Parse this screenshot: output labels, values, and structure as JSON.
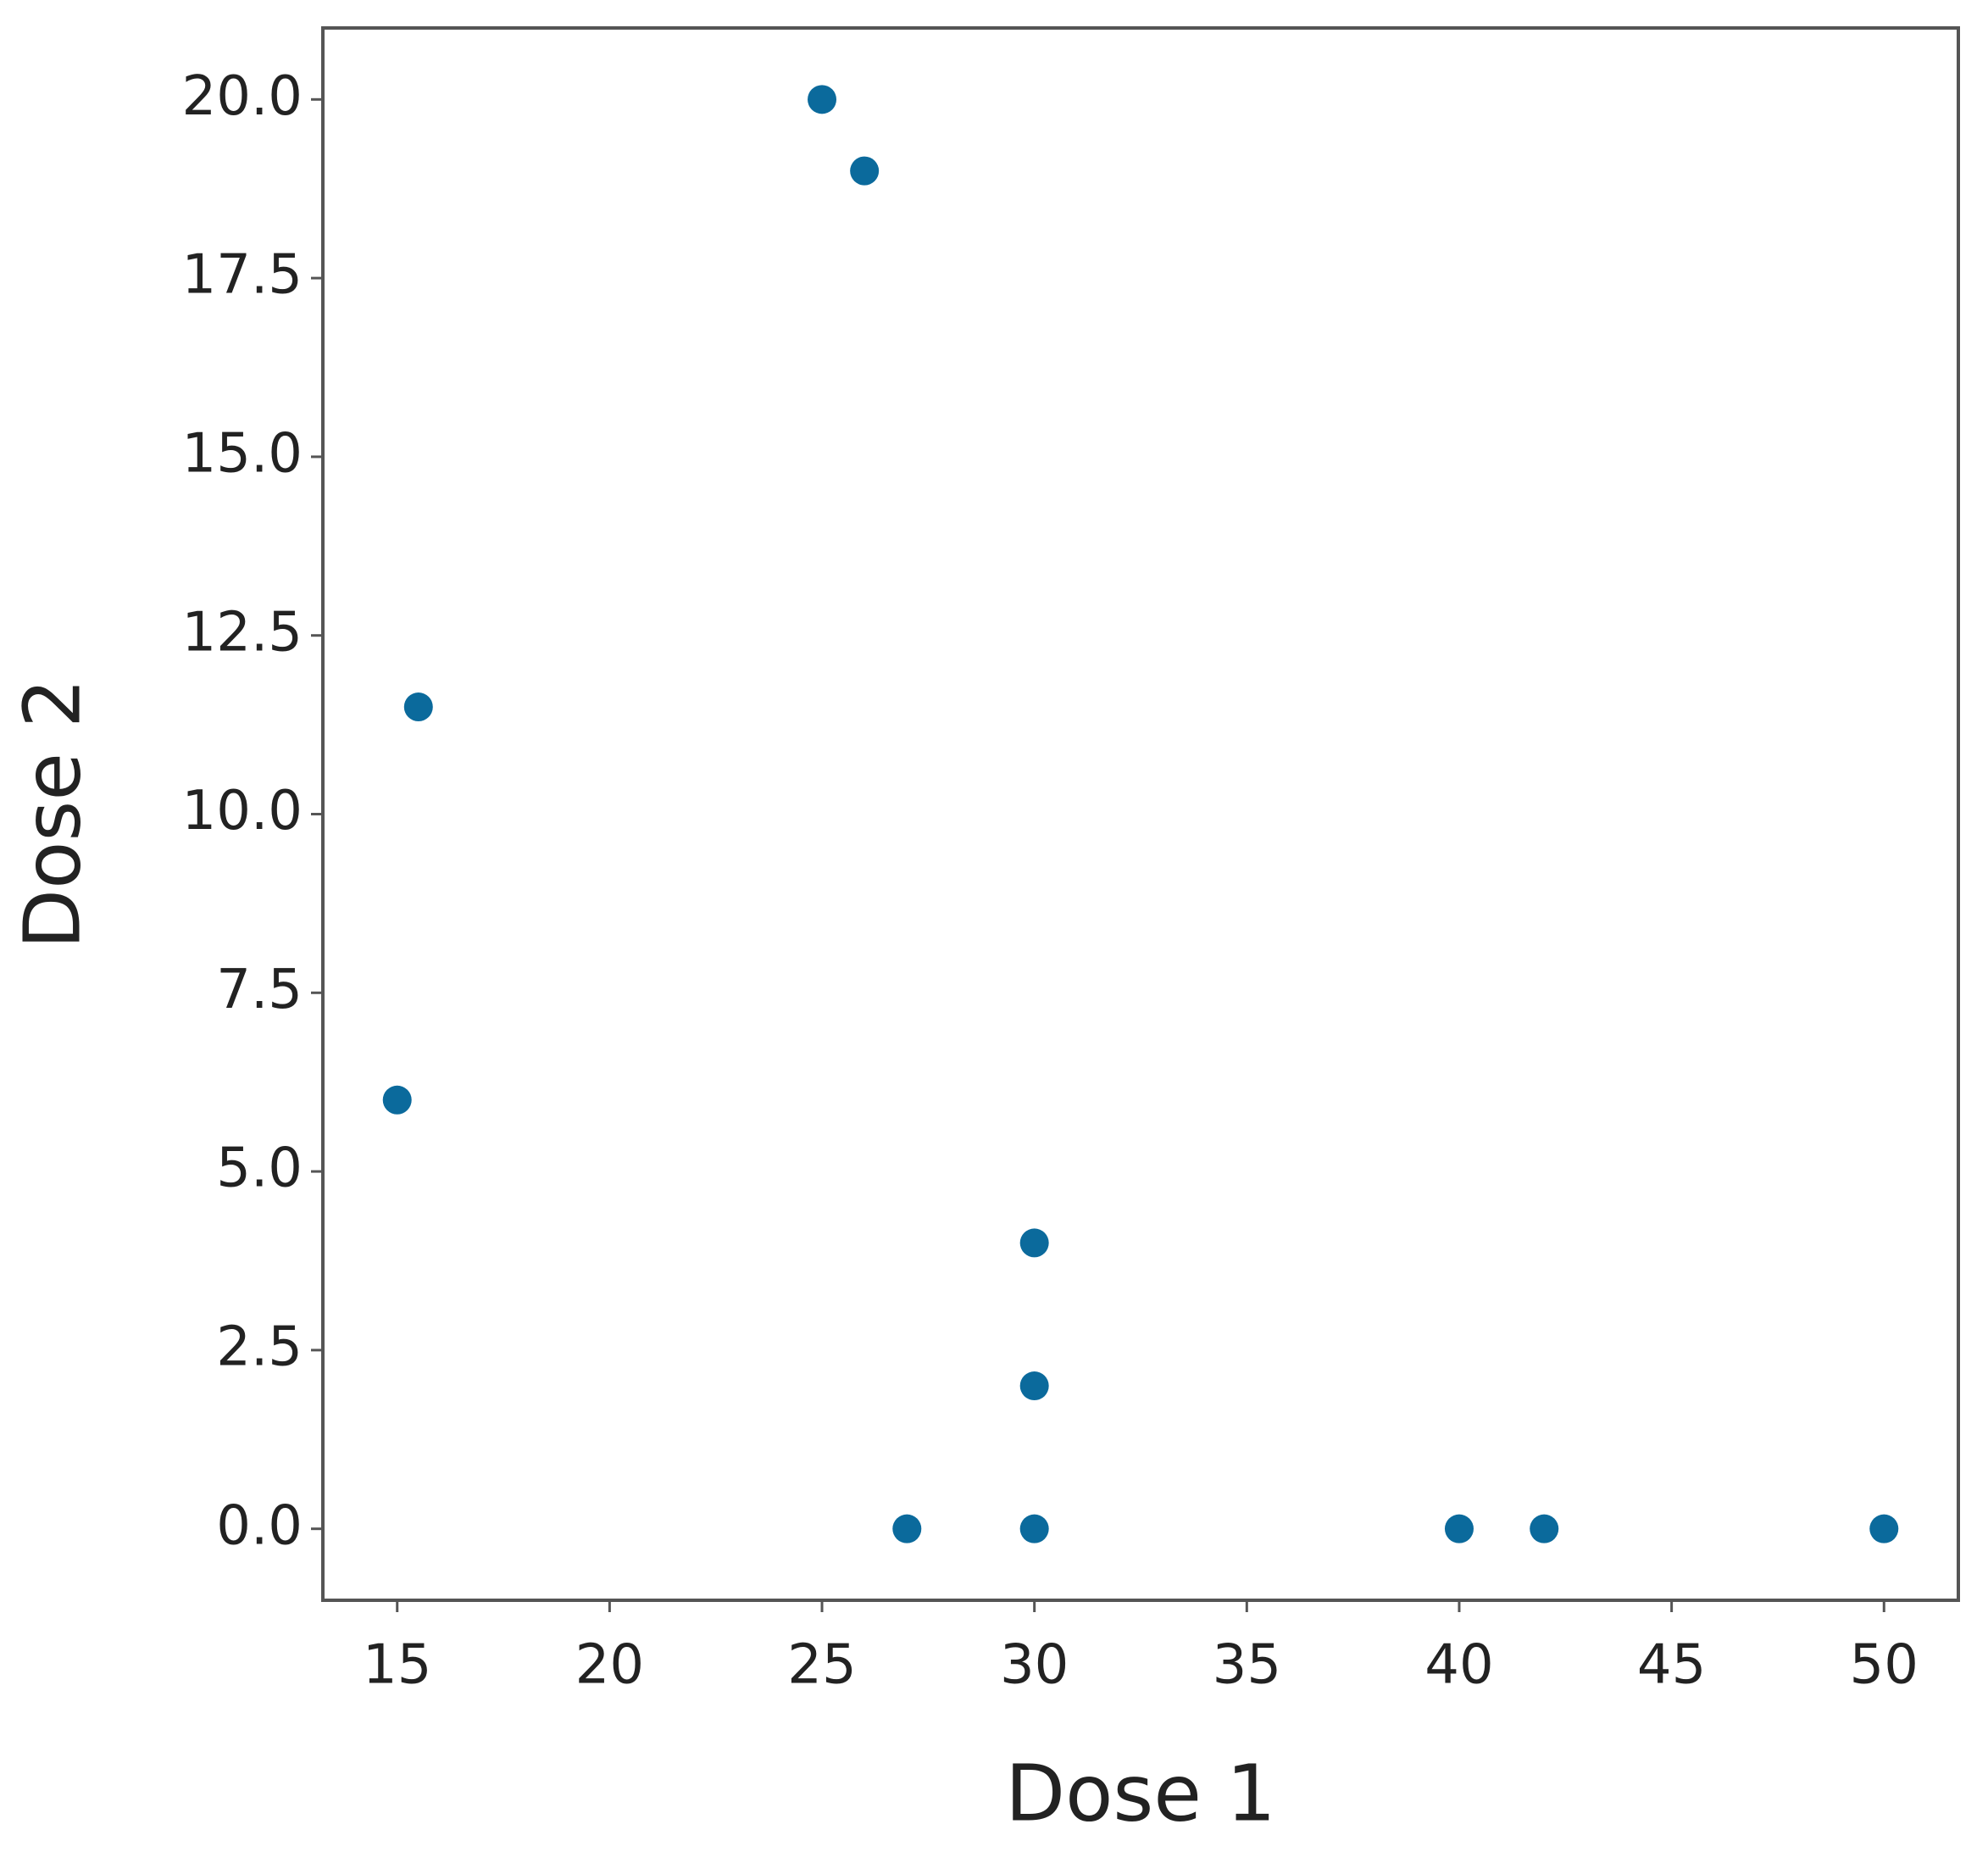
{
  "chart_data": {
    "type": "scatter",
    "x_label": "Dose 1",
    "y_label": "Dose 2",
    "color": "#0b6a9c",
    "x": [
      25,
      26,
      15.5,
      15,
      30,
      30,
      27,
      30,
      40,
      42,
      50
    ],
    "values": [
      20,
      19,
      11.5,
      6,
      4,
      2,
      0,
      0,
      0,
      0,
      0
    ],
    "xlim": [
      13.25,
      51.75
    ],
    "ylim": [
      -1,
      21
    ],
    "xticks": [
      15,
      20,
      25,
      30,
      35,
      40,
      45,
      50
    ],
    "yticks": [
      {
        "value": 0,
        "label": "0.0"
      },
      {
        "value": 2.5,
        "label": "2.5"
      },
      {
        "value": 5,
        "label": "5.0"
      },
      {
        "value": 7.5,
        "label": "7.5"
      },
      {
        "value": 10,
        "label": "10.0"
      },
      {
        "value": 12.5,
        "label": "12.5"
      },
      {
        "value": 15,
        "label": "15.0"
      },
      {
        "value": 17.5,
        "label": "17.5"
      },
      {
        "value": 20,
        "label": "20.0"
      }
    ],
    "grid": false
  }
}
